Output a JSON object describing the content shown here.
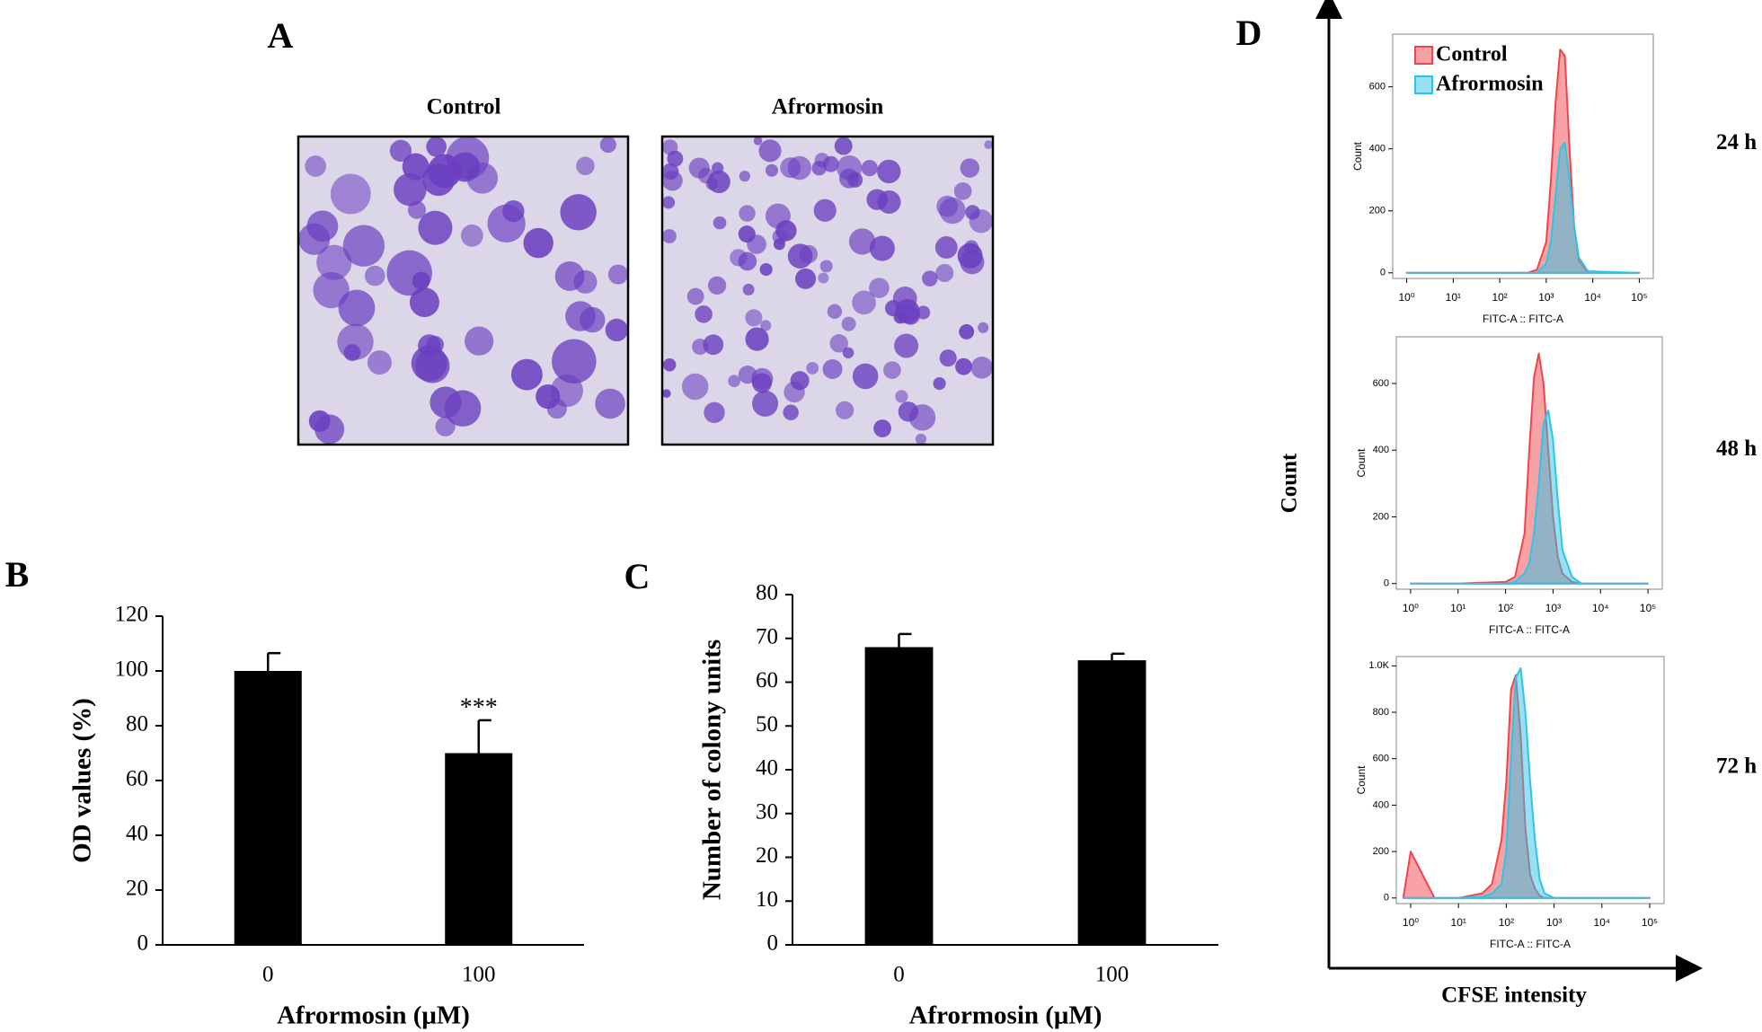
{
  "figure": {
    "panel_labels": [
      "A",
      "B",
      "C",
      "D"
    ],
    "colony_titles": [
      "Control",
      "Afrormosin"
    ],
    "axis_y": "Count",
    "axis_x": "CFSE intensity"
  },
  "chart_data": [
    {
      "type": "bar",
      "categories": [
        "0",
        "100"
      ],
      "values": [
        100,
        70
      ],
      "errors": [
        6.5,
        12
      ],
      "color": "#000000",
      "ylim": [
        0,
        120
      ],
      "yticks": [
        0,
        20,
        40,
        60,
        80,
        100,
        120
      ],
      "xlabel": "Afrormosin (μM)",
      "ylabel": "OD values (%)",
      "annotation": "***"
    },
    {
      "type": "bar",
      "categories": [
        "0",
        "100"
      ],
      "values": [
        68,
        65
      ],
      "errors": [
        3,
        1.5
      ],
      "color": "#000000",
      "ylim": [
        0,
        80
      ],
      "yticks": [
        0,
        10,
        20,
        30,
        40,
        50,
        60,
        70,
        80
      ],
      "xlabel": "Afrormosin (μM)",
      "ylabel": "Number of colony units"
    },
    {
      "type": "area",
      "log_x": true,
      "legend": true,
      "annotation": "24 h",
      "xlabel": "FITC-A :: FITC-A",
      "ylabel": "Count",
      "x": [
        1,
        10,
        100,
        398,
        631,
        1000,
        1259,
        1585,
        1995,
        2512,
        3162,
        3981,
        5012,
        7943,
        100000
      ],
      "series": [
        {
          "name": "Control",
          "color": "#f0454c",
          "values": [
            0,
            0,
            0,
            0,
            10,
            100,
            300,
            550,
            720,
            700,
            400,
            150,
            40,
            0,
            0
          ]
        },
        {
          "name": "Afrormosin",
          "color": "#2ec4e8",
          "values": [
            0,
            0,
            0,
            0,
            0,
            30,
            100,
            250,
            400,
            420,
            300,
            150,
            50,
            5,
            0
          ]
        }
      ],
      "xlim": [
        0.5,
        200000
      ],
      "ylim": [
        -18,
        770
      ],
      "yticks": [
        0,
        200,
        400,
        600
      ],
      "xticks": [
        {
          "value": 1,
          "label": "10⁰"
        },
        {
          "value": 10,
          "label": "10¹"
        },
        {
          "value": 100,
          "label": "10²"
        },
        {
          "value": 1000,
          "label": "10³"
        },
        {
          "value": 10000,
          "label": "10⁴"
        },
        {
          "value": 100000,
          "label": "10⁵"
        }
      ]
    },
    {
      "type": "area",
      "log_x": true,
      "legend": false,
      "annotation": "48 h",
      "xlabel": "FITC-A :: FITC-A",
      "ylabel": "Count",
      "x": [
        1,
        10,
        100,
        158,
        251,
        316,
        398,
        501,
        631,
        794,
        1000,
        1259,
        1585,
        2512,
        3981,
        100000
      ],
      "series": [
        {
          "name": "Control",
          "color": "#f0454c",
          "values": [
            0,
            0,
            5,
            20,
            150,
            400,
            620,
            690,
            600,
            400,
            200,
            80,
            30,
            5,
            0,
            0
          ]
        },
        {
          "name": "Afrormosin",
          "color": "#2ec4e8",
          "values": [
            0,
            0,
            0,
            5,
            30,
            60,
            150,
            300,
            480,
            520,
            430,
            250,
            100,
            20,
            0,
            0
          ]
        }
      ],
      "xlim": [
        0.5,
        200000
      ],
      "ylim": [
        -17,
        740
      ],
      "yticks": [
        0,
        200,
        400,
        600
      ],
      "xticks": [
        {
          "value": 1,
          "label": "10⁰"
        },
        {
          "value": 10,
          "label": "10¹"
        },
        {
          "value": 100,
          "label": "10²"
        },
        {
          "value": 1000,
          "label": "10³"
        },
        {
          "value": 10000,
          "label": "10⁴"
        },
        {
          "value": 100000,
          "label": "10⁵"
        }
      ]
    },
    {
      "type": "area",
      "log_x": true,
      "legend": false,
      "annotation": "72 h",
      "xlabel": "FITC-A :: FITC-A",
      "ylabel": "Count",
      "x": [
        0.7,
        1,
        3.16,
        10,
        31.6,
        50.1,
        79.4,
        100,
        126,
        158,
        200,
        251,
        316,
        398,
        501,
        631,
        1000,
        100000
      ],
      "series": [
        {
          "name": "Control",
          "color": "#f0454c",
          "values": [
            0,
            200,
            0,
            0,
            20,
            60,
            250,
            500,
            900,
            960,
            700,
            300,
            100,
            40,
            10,
            0,
            0,
            0
          ]
        },
        {
          "name": "Afrormosin",
          "color": "#2ec4e8",
          "values": [
            0,
            0,
            0,
            0,
            5,
            20,
            60,
            200,
            600,
            950,
            990,
            800,
            500,
            250,
            80,
            20,
            0,
            0
          ]
        }
      ],
      "xlim": [
        0.5,
        200000
      ],
      "ylim": [
        -24,
        1040
      ],
      "yticks": [
        0,
        200,
        400,
        600,
        800,
        {
          "value": 1000,
          "label": "1.0K"
        }
      ],
      "xticks": [
        {
          "value": 1,
          "label": "10⁰"
        },
        {
          "value": 10,
          "label": "10¹"
        },
        {
          "value": 100,
          "label": "10²"
        },
        {
          "value": 1000,
          "label": "10³"
        },
        {
          "value": 10000,
          "label": "10⁴"
        },
        {
          "value": 100000,
          "label": "10⁵"
        }
      ]
    }
  ]
}
